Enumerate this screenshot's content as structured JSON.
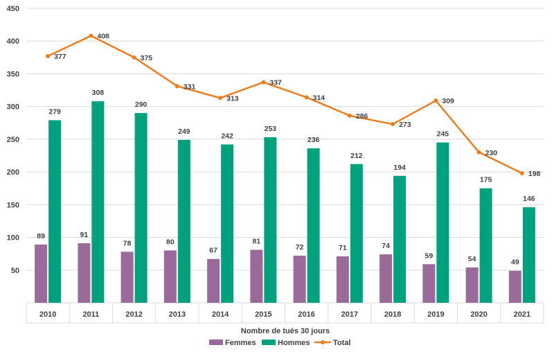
{
  "colors": {
    "femmes": "#9a6b9a",
    "hommes": "#00a27e",
    "total": "#ea7d1e",
    "grid": "#d9d9d9",
    "text": "#404040"
  },
  "chart_data": {
    "type": "bar",
    "categories": [
      "2010",
      "2011",
      "2012",
      "2013",
      "2014",
      "2015",
      "2016",
      "2017",
      "2018",
      "2019",
      "2020",
      "2021"
    ],
    "series": [
      {
        "name": "Femmes",
        "type": "bar",
        "values": [
          89,
          91,
          78,
          80,
          67,
          81,
          72,
          71,
          74,
          59,
          54,
          49
        ]
      },
      {
        "name": "Hommes",
        "type": "bar",
        "values": [
          279,
          308,
          290,
          249,
          242,
          253,
          236,
          212,
          194,
          245,
          175,
          146
        ]
      },
      {
        "name": "Total",
        "type": "line",
        "values": [
          377,
          408,
          375,
          331,
          313,
          337,
          314,
          286,
          273,
          309,
          230,
          198
        ]
      }
    ],
    "title": "",
    "xlabel": "Nombre de tués 30 jours",
    "ylabel": "",
    "ylim": [
      0,
      450
    ],
    "yticks": [
      50,
      100,
      150,
      200,
      250,
      300,
      350,
      400,
      450
    ],
    "grid": true,
    "legend_position": "bottom"
  }
}
